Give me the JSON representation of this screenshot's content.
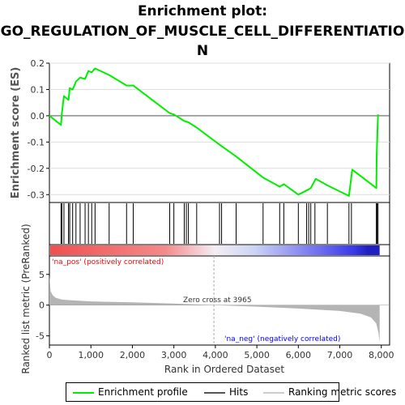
{
  "title": {
    "line1": "Enrichment plot:",
    "line2": "GO_REGULATION_OF_MUSCLE_CELL_DIFFERENTIATIO",
    "line3": "N"
  },
  "colors": {
    "profile": "#00ee00",
    "hits": "#000000",
    "metric_fill": "#b4b4b4",
    "pos_label": "#ff0000",
    "neg_label": "#0000ff"
  },
  "legend": {
    "items": [
      {
        "label": "Enrichment profile",
        "color": "#00ee00"
      },
      {
        "label": "Hits",
        "color": "#555555"
      },
      {
        "label": "Ranking metric scores",
        "color": "#cccccc"
      }
    ]
  },
  "chart_data": [
    {
      "type": "line",
      "name": "enrichment-score",
      "ylabel": "Enrichment score (ES)",
      "xlim": [
        0,
        8200
      ],
      "ylim": [
        -0.33,
        0.2
      ],
      "yticks": [
        "0.2",
        "0.1",
        "0.0",
        "-0.1",
        "-0.2",
        "-0.3"
      ],
      "grid": true,
      "x": [
        0,
        280,
        300,
        350,
        460,
        490,
        560,
        640,
        740,
        860,
        940,
        1020,
        1100,
        1440,
        1860,
        2020,
        2900,
        3000,
        3250,
        3350,
        3550,
        4100,
        4500,
        5150,
        5550,
        5650,
        6000,
        6250,
        6300,
        6420,
        6700,
        7220,
        7300,
        7880,
        7890,
        7920
      ],
      "y": [
        0.0,
        -0.035,
        0.01,
        0.075,
        0.06,
        0.105,
        0.1,
        0.13,
        0.145,
        0.14,
        0.17,
        0.165,
        0.18,
        0.155,
        0.115,
        0.115,
        0.01,
        0.005,
        -0.02,
        -0.025,
        -0.045,
        -0.11,
        -0.155,
        -0.235,
        -0.27,
        -0.26,
        -0.3,
        -0.28,
        -0.275,
        -0.24,
        -0.265,
        -0.305,
        -0.205,
        -0.275,
        -0.145,
        0.005
      ]
    },
    {
      "type": "hits",
      "name": "gene-set-hits",
      "positions": [
        280,
        300,
        350,
        460,
        490,
        560,
        640,
        740,
        860,
        940,
        1020,
        1100,
        1440,
        1860,
        2020,
        2900,
        3000,
        3250,
        3300,
        3350,
        3550,
        4100,
        4150,
        4500,
        5150,
        5550,
        5650,
        6000,
        6200,
        6250,
        6300,
        6400,
        6700,
        7220,
        7280,
        7880,
        7900,
        7920
      ]
    },
    {
      "type": "area",
      "name": "ranked-list-metric",
      "ylabel": "Ranked list metric (PreRanked)",
      "xlabel": "Rank in Ordered Dataset",
      "xlim": [
        0,
        8200
      ],
      "ylim": [
        -6.5,
        8
      ],
      "xticks": [
        "0",
        "1,000",
        "2,000",
        "3,000",
        "4,000",
        "5,000",
        "6,000",
        "7,000",
        "8,000"
      ],
      "yticks": [
        "5",
        "0",
        "-5"
      ],
      "x": [
        0,
        30,
        80,
        150,
        300,
        500,
        1000,
        2000,
        3000,
        3965,
        5000,
        6000,
        7000,
        7500,
        7750,
        7880,
        7930,
        7960
      ],
      "y": [
        4.8,
        2.3,
        1.6,
        1.2,
        0.9,
        0.8,
        0.6,
        0.45,
        0.25,
        0.0,
        -0.25,
        -0.55,
        -0.95,
        -1.4,
        -2.0,
        -3.0,
        -4.5,
        -6.0
      ],
      "zero_cross": 3965,
      "annotations": {
        "zero_cross": "Zero cross at 3965",
        "pos": "'na_pos' (positively correlated)",
        "neg": "'na_neg' (negatively correlated)"
      }
    }
  ]
}
